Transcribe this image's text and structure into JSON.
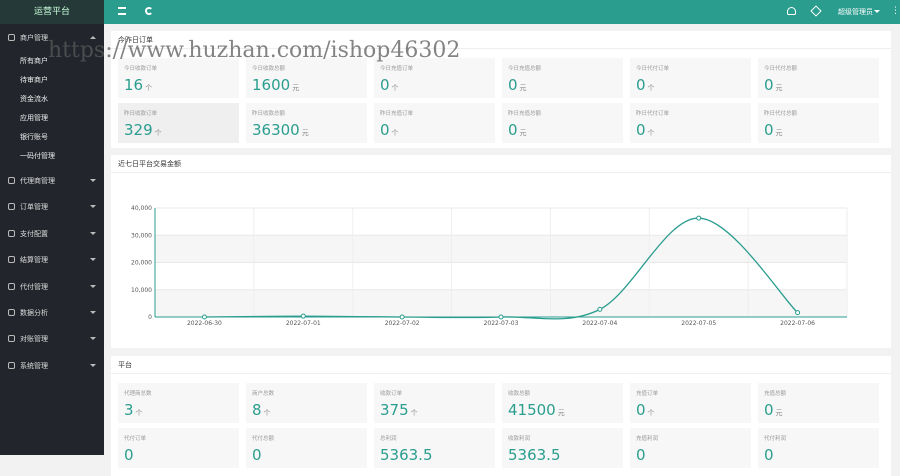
{
  "sidebar": {
    "title": "运营平台",
    "menu": [
      {
        "label": "商户管理",
        "children": [
          "所有商户",
          "待审商户",
          "资金流水",
          "应用管理",
          "银行账号",
          "一码付管理"
        ]
      },
      {
        "label": "代理商管理"
      },
      {
        "label": "订单管理"
      },
      {
        "label": "支付配置"
      },
      {
        "label": "结算管理"
      },
      {
        "label": "代付管理"
      },
      {
        "label": "数据分析"
      },
      {
        "label": "对账管理"
      },
      {
        "label": "系统管理"
      }
    ]
  },
  "header": {
    "user": "超级管理员"
  },
  "watermark": "https://www.huzhan.com/ishop46302",
  "orders_panel": {
    "title": "今昨日订单",
    "cards": [
      {
        "label": "今日收款订单",
        "value": 16,
        "unit": "个"
      },
      {
        "label": "今日收款总额",
        "value": 1600,
        "unit": "元"
      },
      {
        "label": "今日充值订单",
        "value": 0,
        "unit": "个"
      },
      {
        "label": "今日充值总额",
        "value": 0,
        "unit": "元"
      },
      {
        "label": "今日代付订单",
        "value": 0,
        "unit": "个"
      },
      {
        "label": "今日代付总额",
        "value": 0,
        "unit": "元"
      },
      {
        "label": "昨日收款订单",
        "value": 329,
        "unit": "个"
      },
      {
        "label": "昨日收款总额",
        "value": 36300,
        "unit": "元"
      },
      {
        "label": "昨日充值订单",
        "value": 0,
        "unit": "个"
      },
      {
        "label": "昨日充值总额",
        "value": 0,
        "unit": "元"
      },
      {
        "label": "昨日代付订单",
        "value": 0,
        "unit": "个"
      },
      {
        "label": "昨日代付总额",
        "value": 0,
        "unit": "元"
      }
    ]
  },
  "chart_panel": {
    "title": "近七日平台交易金额",
    "chart": {
      "type": "line",
      "color": "#2a9d8f",
      "categories": [
        "2022-06-30",
        "2022-07-01",
        "2022-07-02",
        "2022-07-03",
        "2022-07-04",
        "2022-07-05",
        "2022-07-06"
      ],
      "values": [
        0,
        300,
        0,
        0,
        2800,
        36300,
        1600
      ],
      "ylim": [
        0,
        40000
      ],
      "yticks": [
        0,
        {
          "value": 10000,
          "label": "10,000"
        },
        {
          "value": 20000,
          "label": "20,000"
        },
        {
          "value": 30000,
          "label": "30,000"
        },
        {
          "value": 40000,
          "label": "40,000"
        }
      ]
    }
  },
  "platform_panel": {
    "title": "平台",
    "cards": [
      {
        "label": "代理商总数",
        "value": 3,
        "unit": "个"
      },
      {
        "label": "商户总数",
        "value": 8,
        "unit": "个"
      },
      {
        "label": "收款订单",
        "value": 375,
        "unit": "个"
      },
      {
        "label": "收款总额",
        "value": 41500,
        "unit": "元"
      },
      {
        "label": "充值订单",
        "value": 0,
        "unit": "个"
      },
      {
        "label": "充值总额",
        "value": 0,
        "unit": "元"
      },
      {
        "label": "代付订单",
        "value": 0
      },
      {
        "label": "代付总额",
        "value": 0
      },
      {
        "label": "总利润",
        "value": 5363.5
      },
      {
        "label": "收款利润",
        "value": 5363.5
      },
      {
        "label": "充值利润",
        "value": 0
      },
      {
        "label": "代付利润",
        "value": 0
      }
    ]
  }
}
